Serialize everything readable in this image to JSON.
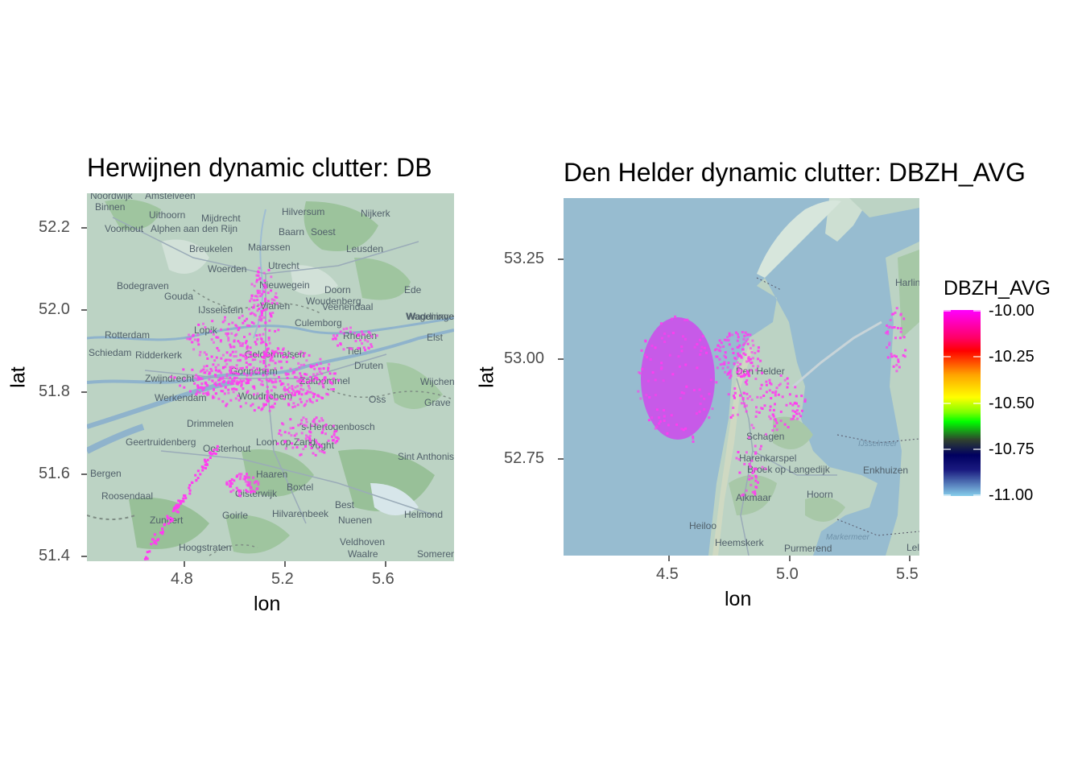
{
  "panels": [
    {
      "title": "Herwijnen dynamic clutter: DB",
      "xlabel": "lon",
      "ylabel": "lat",
      "xticks": [
        "4.8",
        "5.2",
        "5.6"
      ],
      "yticks": [
        "52.2",
        "52.0",
        "51.8",
        "51.6",
        "51.4"
      ],
      "place_labels": [
        "Noordwijk",
        "Amstelveen",
        "Binnen",
        "Uithoorn",
        "Mijdrecht",
        "Hilversum",
        "Nijkerk",
        "Voorhout",
        "Alphen aan den Rijn",
        "Baarn",
        "Soest",
        "Leusden",
        "Breukelen",
        "Maarssen",
        "Woerden",
        "Utrecht",
        "Nieuwegein",
        "Doorn",
        "Ede",
        "Bodegraven",
        "Gouda",
        "IJsselstein",
        "Vianen",
        "Woudenberg",
        "Veenendaal",
        "Waddinxveen",
        "Rotterdam",
        "Lopik",
        "Culemborg",
        "Rhenen",
        "Wageningen",
        "Elst",
        "Schiedam",
        "Ridderkerk",
        "Geldermalsen",
        "Tiel",
        "Zwijndrecht",
        "Gorinchem",
        "Zaltbommel",
        "Druten",
        "Wijchen",
        "Werkendam",
        "Woudrichem",
        "Oss",
        "Grave",
        "Drimmelen",
        "'s-Hertogenbosch",
        "Geertruidenberg",
        "Oosterhout",
        "Loon op Zand",
        "Vught",
        "Sint Anthonis",
        "Bergen",
        "Roosendaal",
        "Haaren",
        "Boxtel",
        "Oisterwijk",
        "Best",
        "Zundert",
        "Goirle",
        "Hilvarenbeek",
        "Nuenen",
        "Helmond",
        "Hoogstraten",
        "Veldhoven",
        "Waalre",
        "Someren"
      ]
    },
    {
      "title": "Den Helder dynamic clutter: DBZH_AVG",
      "xlabel": "lon",
      "ylabel": "lat",
      "xticks": [
        "4.5",
        "5.0",
        "5.5"
      ],
      "yticks": [
        "53.25",
        "53.00",
        "52.75"
      ],
      "place_labels": [
        "Harlingen",
        "Den Helder",
        "Schagen",
        "Harenkarspel",
        "Broek op Langedijk",
        "Enkhuizen",
        "IJsselmeer",
        "Hoorn",
        "Alkmaar",
        "Heiloo",
        "Markermeer",
        "Heemskerk",
        "Purmerend",
        "Lelystad"
      ]
    }
  ],
  "legend": {
    "title": "DBZH_AVG",
    "ticks": [
      "-10.00",
      "-10.25",
      "-10.50",
      "-10.75",
      "-11.00"
    ],
    "values": [
      -10.0,
      -10.25,
      -10.5,
      -10.75,
      -11.0
    ],
    "colors": [
      "#ff00ff",
      "#ff0000",
      "#ffa500",
      "#ffff00",
      "#00ff00",
      "#2f2f2f",
      "#000080",
      "#87ceeb"
    ]
  },
  "colors": {
    "land": "#bfd5c5",
    "forest": "#8fbc8f",
    "water": "#93b8cf",
    "clutter_magenta": "#ff3df0",
    "clutter_fill": "#c75ae8"
  }
}
